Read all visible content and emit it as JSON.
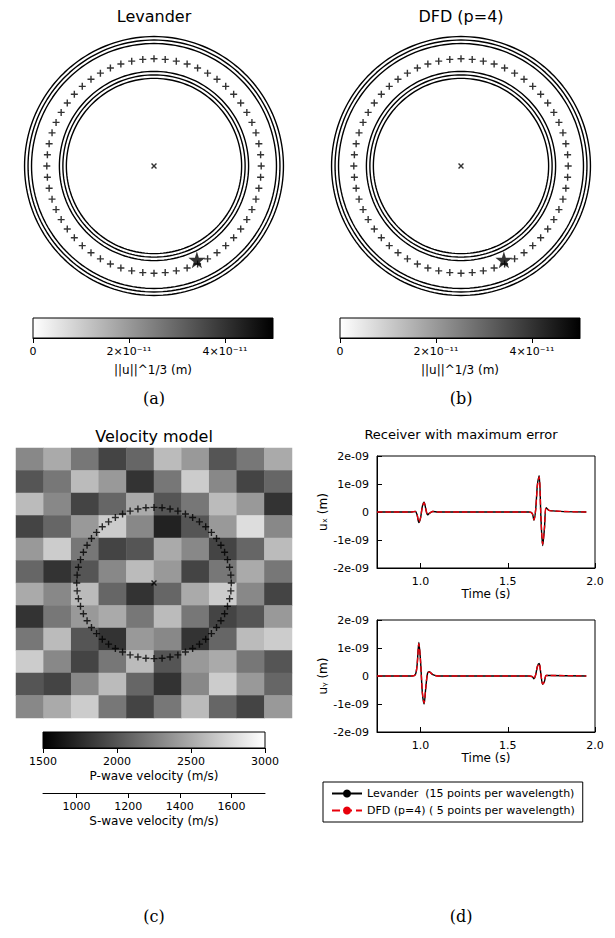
{
  "chart_data": [
    {
      "type": "wavefield",
      "title": "Levander",
      "panel_label": "(a)",
      "xlim": [
        0,
        100
      ],
      "ylim": [
        0,
        100
      ],
      "tick_labels": false,
      "wavefront_radii": [
        47,
        34
      ],
      "receivers": {
        "center": [
          50,
          50
        ],
        "radius": 40,
        "count": 60,
        "marker": "plus"
      },
      "source": {
        "x": 50,
        "y": 50,
        "marker": "x"
      },
      "max_error_receiver": {
        "x": 66,
        "y": 15,
        "marker": "star"
      },
      "colorbar": {
        "label": "||u||^1/3 (m)",
        "range": [
          0,
          5e-11
        ],
        "ticks": [
          0,
          {
            "value": 2e-11,
            "label": "2×10⁻¹¹"
          },
          {
            "value": 4e-11,
            "label": "4×10⁻¹¹"
          }
        ]
      }
    },
    {
      "type": "wavefield",
      "title": "DFD (p=4)",
      "panel_label": "(b)",
      "xlim": [
        0,
        100
      ],
      "ylim": [
        0,
        100
      ],
      "tick_labels": false,
      "wavefront_radii": [
        47,
        34
      ],
      "receivers": {
        "center": [
          50,
          50
        ],
        "radius": 40,
        "count": 60,
        "marker": "plus"
      },
      "source": {
        "x": 50,
        "y": 50,
        "marker": "x"
      },
      "max_error_receiver": {
        "x": 66,
        "y": 15,
        "marker": "star"
      },
      "colorbar": {
        "label": "||u||^1/3 (m)",
        "range": [
          0,
          5e-11
        ],
        "ticks": [
          0,
          {
            "value": 2e-11,
            "label": "2×10⁻¹¹"
          },
          {
            "value": 4e-11,
            "label": "4×10⁻¹¹"
          }
        ]
      }
    },
    {
      "type": "heatmap",
      "title": "Velocity model",
      "panel_label": "(c)",
      "xlim": [
        0,
        100
      ],
      "ylim": [
        0,
        100
      ],
      "tick_labels": false,
      "cells": [
        [
          2300,
          2500,
          2200,
          1900,
          2100,
          2600,
          2400,
          2000,
          2200,
          2500
        ],
        [
          2000,
          2200,
          2600,
          2400,
          1800,
          2200,
          2700,
          2300,
          1900,
          2100
        ],
        [
          2600,
          2300,
          1900,
          2100,
          2500,
          2000,
          2200,
          2600,
          2400,
          1800
        ],
        [
          1900,
          2100,
          2400,
          2700,
          2300,
          1700,
          2000,
          2400,
          2800,
          2300
        ],
        [
          2400,
          2700,
          2200,
          1900,
          2000,
          2500,
          2300,
          1900,
          2100,
          2600
        ],
        [
          2100,
          1800,
          2000,
          2300,
          2600,
          2400,
          1900,
          2200,
          2500,
          2200
        ],
        [
          2500,
          2300,
          2600,
          2100,
          1800,
          2100,
          2500,
          2700,
          2300,
          1900
        ],
        [
          1800,
          2200,
          2400,
          2500,
          2200,
          2600,
          2200,
          1900,
          2000,
          2400
        ],
        [
          2200,
          2600,
          2000,
          1800,
          2400,
          2300,
          1800,
          2100,
          2600,
          2700
        ],
        [
          2700,
          2300,
          1900,
          2200,
          2600,
          2000,
          2400,
          2500,
          2200,
          2000
        ],
        [
          2000,
          1900,
          2300,
          2600,
          2100,
          1800,
          2300,
          2700,
          2400,
          2100
        ],
        [
          2300,
          2500,
          2700,
          2200,
          1900,
          2200,
          2600,
          2100,
          1900,
          2400
        ]
      ],
      "receivers": {
        "center": [
          50,
          50
        ],
        "radius": 28,
        "count": 60,
        "marker": "plus"
      },
      "source": {
        "x": 50,
        "y": 50,
        "marker": "x"
      },
      "colorbars": [
        {
          "label": "P-wave velocity (m/s)",
          "range": [
            1500,
            3000
          ],
          "ticks": [
            1500,
            2000,
            2500,
            3000
          ]
        },
        {
          "label": "S-wave velocity (m/s)",
          "range": [
            870,
            1730
          ],
          "ticks": [
            1000,
            1200,
            1400,
            1600
          ]
        }
      ]
    },
    {
      "type": "line",
      "title": "Receiver with maximum error",
      "panel_label": "(d)",
      "grid": false,
      "legend": "bottom",
      "x": [
        0.75,
        0.95,
        0.97,
        0.98,
        0.99,
        1.0,
        1.01,
        1.02,
        1.03,
        1.04,
        1.05,
        1.07,
        1.1,
        1.62,
        1.64,
        1.65,
        1.66,
        1.67,
        1.68,
        1.69,
        1.7,
        1.71,
        1.72,
        1.74,
        1.95
      ],
      "xlim": [
        0.75,
        2.0
      ],
      "xticks": [
        {
          "value": 1,
          "label": "1.0"
        },
        {
          "value": 1.5,
          "label": "1.5"
        },
        {
          "value": 2,
          "label": "2.0"
        }
      ],
      "xlabel": "Time (s)",
      "ylim": [
        -2e-09,
        2e-09
      ],
      "yticks": [
        {
          "value": -2e-09,
          "label": "-2e-09"
        },
        {
          "value": -1e-09,
          "label": "-1e-09"
        },
        0,
        {
          "value": 1e-09,
          "label": "1e-09"
        },
        {
          "value": 2e-09,
          "label": "2e-09"
        }
      ],
      "subplots": [
        {
          "ylabel": "uₓ (m)",
          "series": [
            {
              "name": "Levander  (15 points per wavelength)",
              "color": "#000000",
              "line_style": "solid",
              "values": [
                0,
                0,
                2e-11,
                -1e-10,
                -3.8e-10,
                -2e-10,
                2e-10,
                3.5e-10,
                1e-10,
                -1e-10,
                -5e-11,
                2e-11,
                0,
                0,
                -5e-11,
                -3e-10,
                1e-10,
                1e-09,
                1.3e-09,
                -2e-10,
                -1.2e-09,
                -6e-10,
                1.5e-10,
                5e-11,
                0
              ]
            },
            {
              "name": "DFD (p=4) ( 5 points per wavelength)",
              "color": "#e8000b",
              "line_style": "dashed",
              "values": [
                0,
                0,
                2e-11,
                -1e-10,
                -3.6e-10,
                -2e-10,
                1.9e-10,
                3.3e-10,
                1e-10,
                -9e-11,
                -5e-11,
                2e-11,
                0,
                0,
                -5e-11,
                -2.8e-10,
                1e-10,
                9.5e-10,
                1.25e-09,
                -2e-10,
                -1.15e-09,
                -5.8e-10,
                1.5e-10,
                5e-11,
                0
              ]
            }
          ]
        },
        {
          "ylabel": "uᵧ (m)",
          "series": [
            {
              "name": "Levander  (15 points per wavelength)",
              "color": "#000000",
              "line_style": "solid",
              "values": [
                0,
                0,
                5e-11,
                4e-10,
                1.2e-09,
                5e-10,
                -6e-10,
                -1e-09,
                -4e-10,
                1e-10,
                1.5e-10,
                5e-11,
                0,
                0,
                -2e-11,
                -1e-10,
                5e-11,
                3.5e-10,
                4.5e-10,
                5e-11,
                -3e-10,
                -2e-10,
                2e-11,
                2e-11,
                0
              ]
            },
            {
              "name": "DFD (p=4) ( 5 points per wavelength)",
              "color": "#e8000b",
              "line_style": "dashed",
              "values": [
                0,
                0,
                5e-11,
                3.9e-10,
                1.15e-09,
                5e-10,
                -5.8e-10,
                -9.6e-10,
                -4e-10,
                1e-10,
                1.4e-10,
                5e-11,
                0,
                0,
                -2e-11,
                -1e-10,
                5e-11,
                3.4e-10,
                4.4e-10,
                5e-11,
                -2.9e-10,
                -2e-10,
                2e-11,
                2e-11,
                0
              ]
            }
          ]
        }
      ]
    }
  ]
}
